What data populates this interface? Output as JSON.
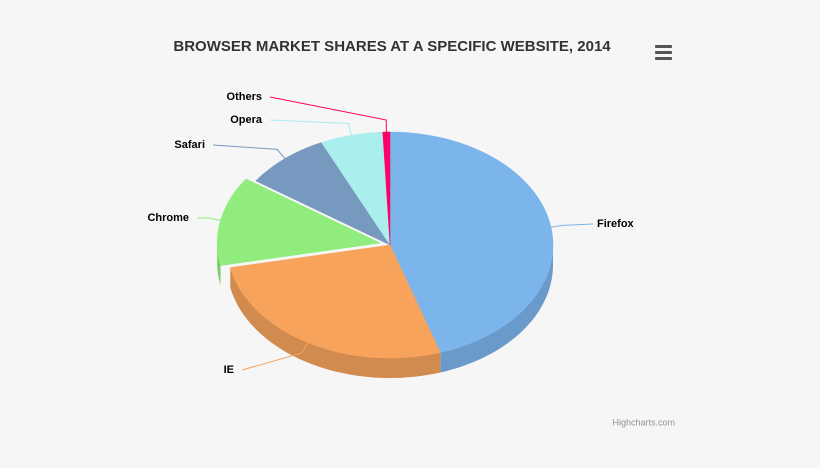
{
  "chart_data": {
    "type": "pie",
    "title": "BROWSER MARKET SHARES AT A SPECIFIC WEBSITE, 2014",
    "categories": [
      "Firefox",
      "IE",
      "Chrome",
      "Safari",
      "Opera",
      "Others"
    ],
    "values": [
      45.0,
      26.8,
      12.8,
      8.5,
      6.2,
      0.7
    ],
    "colors": [
      "#7cb5ec",
      "#f7a35c",
      "#90ed7d",
      "#7798bf",
      "#aaeeee",
      "#ff0066"
    ],
    "credits": "Highcharts.com"
  }
}
